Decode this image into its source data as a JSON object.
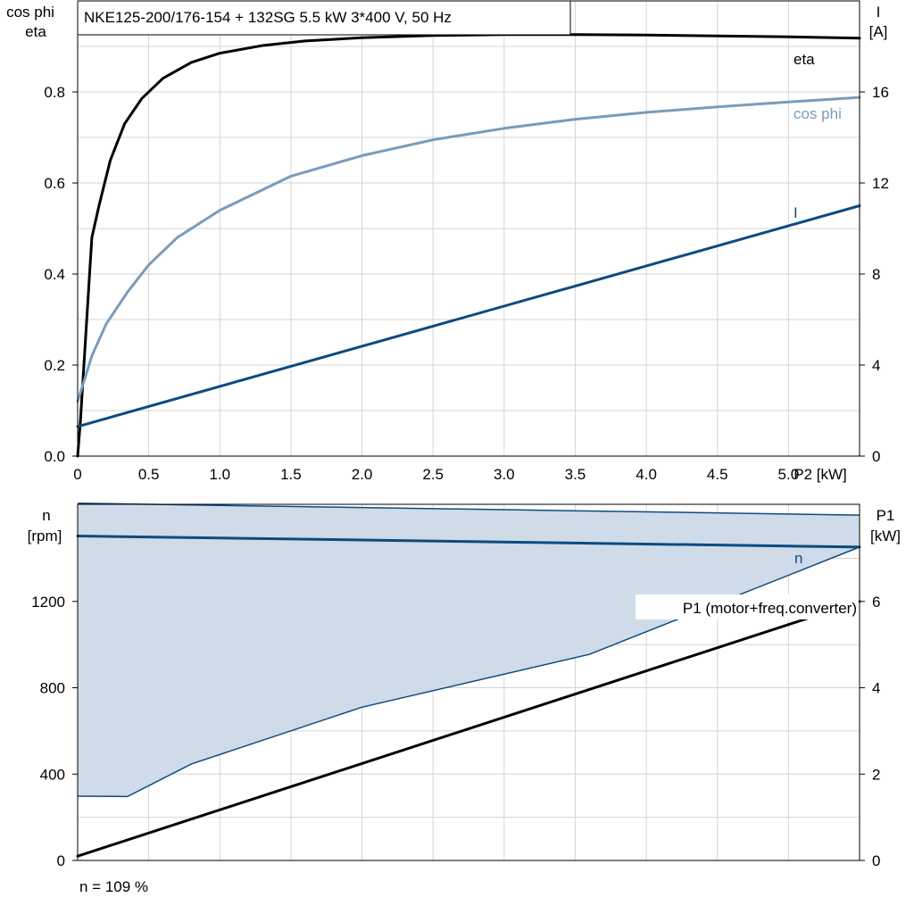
{
  "title": "NKE125-200/176-154 + 132SG   5.5 kW   3*400 V, 50 Hz",
  "footer_note": "n = 109 %",
  "colors": {
    "eta": "#000000",
    "cos_phi": "#7a9cba",
    "current": "#0e4a80",
    "speed": "#0e4a80",
    "band_fill": "#cfdbe8",
    "p1": "#000000",
    "grid": "#d4d4d4"
  },
  "chart_data": [
    {
      "type": "line",
      "xlabel": "P2 [kW]",
      "ylabel_left": [
        "cos phi",
        "eta"
      ],
      "ylabel_right": [
        "I",
        "[A]"
      ],
      "xlim": [
        0,
        5.5
      ],
      "ylim_left": [
        0,
        1.0
      ],
      "ylim_right": [
        0,
        20
      ],
      "x_ticks": [
        "0",
        "0.5",
        "1.0",
        "1.5",
        "2.0",
        "2.5",
        "3.0",
        "3.5",
        "4.0",
        "4.5",
        "5.0"
      ],
      "x_tick_values": [
        0,
        0.5,
        1.0,
        1.5,
        2.0,
        2.5,
        3.0,
        3.5,
        4.0,
        4.5,
        5.0
      ],
      "y_left_ticks": [
        "0.0",
        "0.2",
        "0.4",
        "0.6",
        "0.8"
      ],
      "y_left_values": [
        0,
        0.2,
        0.4,
        0.6,
        0.8
      ],
      "y_right_ticks": [
        "0",
        "4",
        "8",
        "12",
        "16"
      ],
      "y_right_values": [
        0,
        4,
        8,
        12,
        16
      ],
      "grid": true,
      "series": [
        {
          "name": "eta",
          "axis": "left",
          "x": [
            0,
            0.02,
            0.1,
            0.15,
            0.23,
            0.33,
            0.45,
            0.6,
            0.8,
            1.0,
            1.3,
            1.6,
            2.0,
            2.5,
            3.0,
            3.5,
            4.0,
            4.5,
            5.0,
            5.5
          ],
          "y": [
            0.0,
            0.08,
            0.48,
            0.55,
            0.65,
            0.73,
            0.785,
            0.83,
            0.865,
            0.885,
            0.902,
            0.912,
            0.919,
            0.924,
            0.926,
            0.926,
            0.925,
            0.923,
            0.921,
            0.918
          ]
        },
        {
          "name": "cos phi",
          "axis": "left",
          "x": [
            0,
            0.1,
            0.2,
            0.35,
            0.5,
            0.7,
            1.0,
            1.5,
            2.0,
            2.5,
            3.0,
            3.5,
            4.0,
            4.5,
            5.0,
            5.5
          ],
          "y": [
            0.12,
            0.22,
            0.29,
            0.36,
            0.42,
            0.48,
            0.54,
            0.615,
            0.66,
            0.695,
            0.72,
            0.74,
            0.755,
            0.767,
            0.778,
            0.788
          ]
        },
        {
          "name": "I",
          "axis": "right",
          "x": [
            0,
            5.5
          ],
          "y": [
            1.3,
            11.0
          ]
        }
      ]
    },
    {
      "type": "area",
      "ylabel_left": [
        "n",
        "[rpm]"
      ],
      "ylabel_right": [
        "P1",
        "[kW]"
      ],
      "xlim": [
        0,
        5.5
      ],
      "ylim_left": [
        0,
        1650
      ],
      "ylim_right": [
        0,
        8.25
      ],
      "y_left_ticks": [
        "0",
        "400",
        "800",
        "1200"
      ],
      "y_left_values": [
        0,
        400,
        800,
        1200
      ],
      "y_right_ticks": [
        "0",
        "2",
        "4",
        "6"
      ],
      "y_right_values": [
        0,
        2,
        4,
        6
      ],
      "grid": true,
      "series": [
        {
          "name": "n",
          "axis": "left",
          "x": [
            0,
            5.5
          ],
          "y": [
            1503,
            1452
          ]
        },
        {
          "name": "P1 (motor+freq.converter)",
          "axis": "right",
          "x": [
            0,
            5.5
          ],
          "y": [
            0.1,
            6.0
          ]
        }
      ],
      "operating_band": {
        "upper": {
          "x": [
            0,
            5.5
          ],
          "y": [
            1655,
            1600
          ]
        },
        "lower": {
          "x": [
            0,
            0.35,
            0.8,
            2.0,
            3.6,
            5.5
          ],
          "y": [
            298,
            296,
            447,
            710,
            955,
            1452
          ]
        }
      }
    }
  ]
}
